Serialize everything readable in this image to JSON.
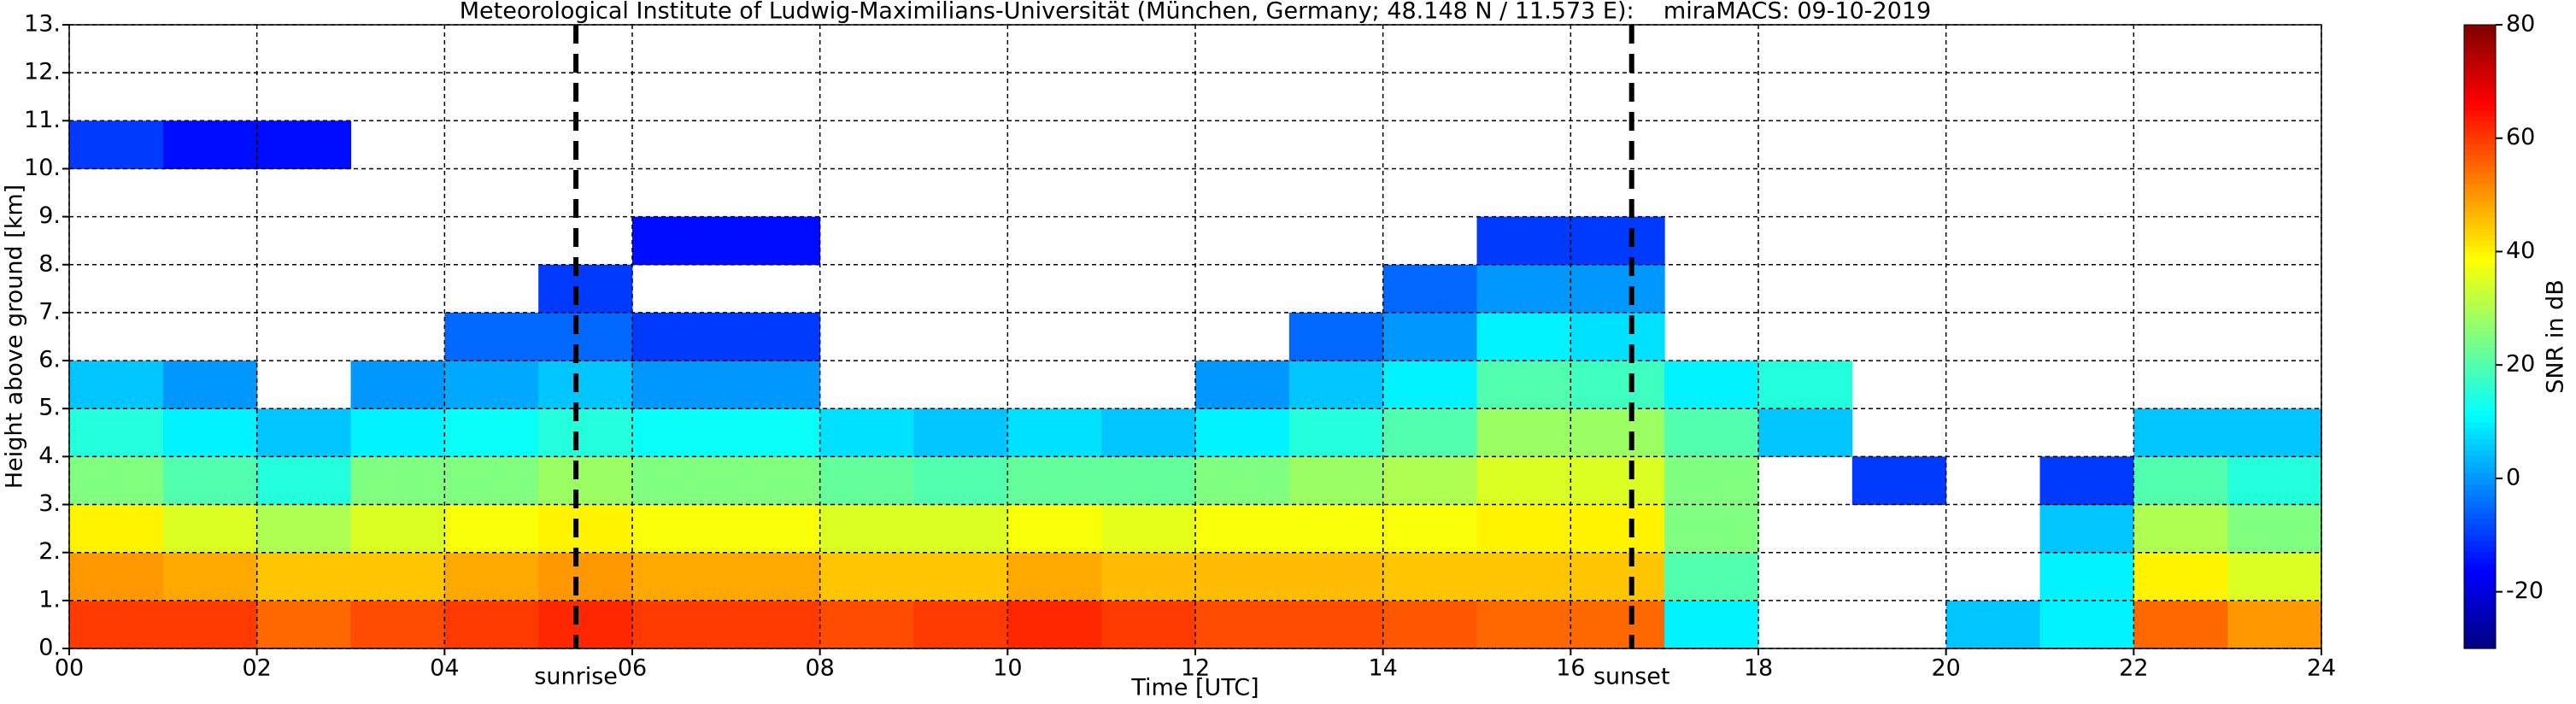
{
  "chart_data": {
    "type": "heatmap",
    "title": "Meteorological Institute of Ludwig-Maximilians-Universität (München, Germany; 48.148 N / 11.573 E):    miraMACS: 09-10-2019",
    "x_label": "Time [UTC]",
    "y_label": "Height above ground [km]",
    "colorbar_label": "SNR in dB",
    "colormap": "jet",
    "grid": true,
    "xbins": [
      0,
      1,
      2,
      3,
      4,
      5,
      6,
      7,
      8,
      9,
      10,
      11,
      12,
      13,
      14,
      15,
      16,
      17,
      18,
      19,
      20,
      21,
      22,
      23,
      24
    ],
    "ybins": [
      0,
      1,
      2,
      3,
      4,
      5,
      6,
      7,
      8,
      9,
      10,
      11,
      12,
      13
    ],
    "z": [
      [
        60,
        60,
        55,
        58,
        60,
        62,
        60,
        60,
        58,
        60,
        62,
        60,
        58,
        58,
        57,
        55,
        55,
        10,
        null,
        null,
        5,
        10,
        55,
        50
      ],
      [
        50,
        48,
        45,
        45,
        48,
        50,
        48,
        48,
        45,
        45,
        48,
        46,
        46,
        46,
        45,
        45,
        45,
        20,
        null,
        null,
        null,
        10,
        40,
        35
      ],
      [
        40,
        35,
        30,
        35,
        38,
        40,
        38,
        38,
        35,
        35,
        38,
        36,
        38,
        38,
        38,
        40,
        40,
        25,
        null,
        null,
        null,
        5,
        30,
        25
      ],
      [
        25,
        20,
        15,
        25,
        25,
        28,
        25,
        25,
        22,
        20,
        22,
        22,
        25,
        28,
        30,
        35,
        35,
        25,
        null,
        -10,
        null,
        -10,
        20,
        15
      ],
      [
        15,
        10,
        5,
        10,
        12,
        15,
        12,
        12,
        8,
        5,
        8,
        5,
        10,
        15,
        20,
        28,
        28,
        20,
        5,
        null,
        null,
        null,
        5,
        5
      ],
      [
        5,
        0,
        null,
        0,
        2,
        5,
        0,
        0,
        null,
        null,
        null,
        null,
        0,
        5,
        10,
        20,
        18,
        10,
        15,
        null,
        null,
        null,
        null,
        null
      ],
      [
        null,
        null,
        null,
        null,
        -5,
        -5,
        -10,
        -10,
        null,
        null,
        null,
        null,
        null,
        -5,
        0,
        10,
        8,
        null,
        null,
        null,
        null,
        null,
        null,
        null
      ],
      [
        null,
        null,
        null,
        null,
        null,
        -10,
        null,
        null,
        null,
        null,
        null,
        null,
        null,
        null,
        -5,
        0,
        0,
        null,
        null,
        null,
        null,
        null,
        null,
        null
      ],
      [
        null,
        null,
        null,
        null,
        null,
        null,
        -15,
        -15,
        null,
        null,
        null,
        null,
        null,
        null,
        null,
        -10,
        -10,
        null,
        null,
        null,
        null,
        null,
        null,
        null
      ],
      [
        null,
        null,
        null,
        null,
        null,
        null,
        null,
        null,
        null,
        null,
        null,
        null,
        null,
        null,
        null,
        null,
        null,
        null,
        null,
        null,
        null,
        null,
        null,
        null
      ],
      [
        -10,
        -15,
        -15,
        null,
        null,
        null,
        null,
        null,
        null,
        null,
        null,
        null,
        null,
        null,
        null,
        null,
        null,
        null,
        null,
        null,
        null,
        null,
        null,
        null
      ],
      [
        null,
        null,
        null,
        null,
        null,
        null,
        null,
        null,
        null,
        null,
        null,
        null,
        null,
        null,
        null,
        null,
        null,
        null,
        null,
        null,
        null,
        null,
        null,
        null
      ],
      [
        null,
        null,
        null,
        null,
        null,
        null,
        null,
        null,
        null,
        null,
        null,
        null,
        null,
        null,
        null,
        null,
        null,
        null,
        null,
        null,
        null,
        null,
        null,
        null
      ]
    ],
    "xlim": [
      0,
      24
    ],
    "ylim": [
      0,
      13
    ],
    "xticks": [
      {
        "value": 0,
        "label": "00"
      },
      {
        "value": 2,
        "label": "02"
      },
      {
        "value": 4,
        "label": "04"
      },
      {
        "value": 6,
        "label": "06"
      },
      {
        "value": 8,
        "label": "08"
      },
      {
        "value": 10,
        "label": "10"
      },
      {
        "value": 12,
        "label": "12"
      },
      {
        "value": 14,
        "label": "14"
      },
      {
        "value": 16,
        "label": "16"
      },
      {
        "value": 18,
        "label": "18"
      },
      {
        "value": 20,
        "label": "20"
      },
      {
        "value": 22,
        "label": "22"
      },
      {
        "value": 24,
        "label": "24"
      }
    ],
    "yticks": [
      {
        "value": 0,
        "label": "0."
      },
      {
        "value": 1,
        "label": "1."
      },
      {
        "value": 2,
        "label": "2."
      },
      {
        "value": 3,
        "label": "3."
      },
      {
        "value": 4,
        "label": "4."
      },
      {
        "value": 5,
        "label": "5."
      },
      {
        "value": 6,
        "label": "6."
      },
      {
        "value": 7,
        "label": "7."
      },
      {
        "value": 8,
        "label": "8."
      },
      {
        "value": 9,
        "label": "9."
      },
      {
        "value": 10,
        "label": "10."
      },
      {
        "value": 11,
        "label": "11."
      },
      {
        "value": 12,
        "label": "12."
      },
      {
        "value": 13,
        "label": "13."
      }
    ],
    "clim": [
      -30,
      80
    ],
    "cticks": [
      -20,
      0,
      20,
      40,
      60,
      80
    ],
    "annotations": [
      {
        "label": "sunrise",
        "x": 5.4
      },
      {
        "label": "sunset",
        "x": 16.65
      }
    ]
  }
}
